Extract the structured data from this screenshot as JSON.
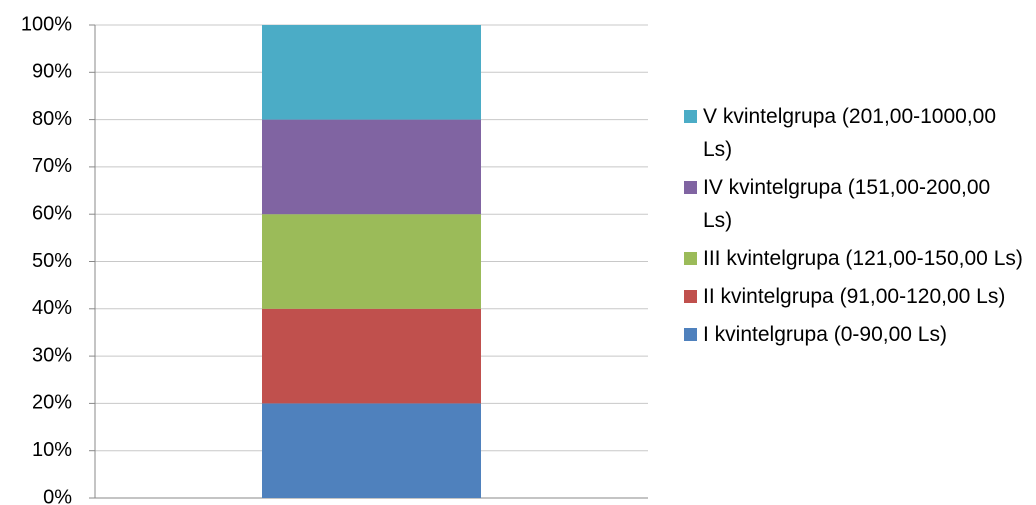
{
  "chart_data": {
    "type": "stacked_bar",
    "categories": [
      null
    ],
    "series": [
      {
        "name": "I kvintelgrupa (0-90,00 Ls)",
        "color": "#4f81bd",
        "values": [
          20
        ]
      },
      {
        "name": "II kvintelgrupa (91,00-120,00 Ls)",
        "color": "#c0504d",
        "values": [
          20
        ]
      },
      {
        "name": "III kvintelgrupa (121,00-150,00 Ls)",
        "color": "#9bbb59",
        "values": [
          20
        ]
      },
      {
        "name": "IV kvintelgrupa (151,00-200,00 Ls)",
        "color": "#8064a2",
        "values": [
          20
        ]
      },
      {
        "name": "V kvintelgrupa (201,00-1000,00 Ls)",
        "color": "#4bacc6",
        "values": [
          20
        ]
      }
    ],
    "ylim": [
      0,
      100
    ],
    "yticks": [
      {
        "value": 0,
        "label": "0%"
      },
      {
        "value": 10,
        "label": "10%"
      },
      {
        "value": 20,
        "label": "20%"
      },
      {
        "value": 30,
        "label": "30%"
      },
      {
        "value": 40,
        "label": "40%"
      },
      {
        "value": 50,
        "label": "50%"
      },
      {
        "value": 60,
        "label": "60%"
      },
      {
        "value": 70,
        "label": "70%"
      },
      {
        "value": 80,
        "label": "80%"
      },
      {
        "value": 90,
        "label": "90%"
      },
      {
        "value": 100,
        "label": "100%"
      }
    ],
    "grid": true,
    "legend": "right"
  }
}
